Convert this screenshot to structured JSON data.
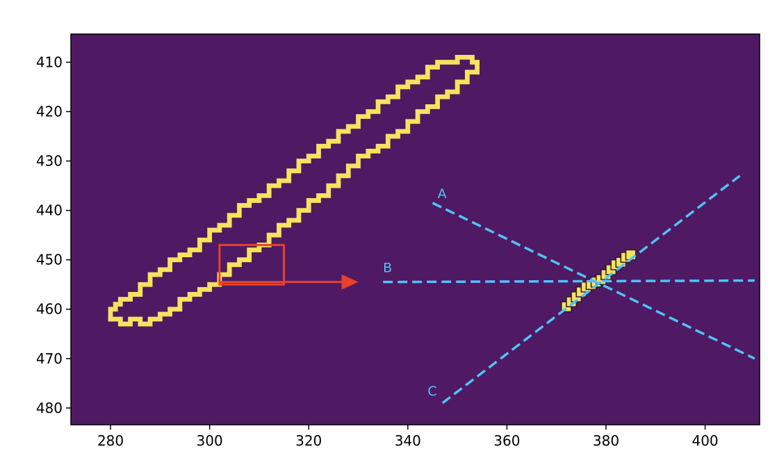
{
  "chart_data": {
    "type": "image-annotation",
    "x_ticks": [
      280,
      300,
      320,
      340,
      360,
      380,
      400
    ],
    "y_ticks": [
      410,
      420,
      430,
      440,
      450,
      460,
      470,
      480
    ],
    "xlim": [
      272,
      411
    ],
    "ylim": [
      483.4,
      404.3
    ],
    "y_inverted": true,
    "colors": {
      "background": "#4f1a63",
      "contour": "#f7e25f",
      "box": "#e8402c",
      "dashed_lines": "#4fc3f7",
      "zoom_pixel_outline": "#2a1a2e"
    },
    "contour_outer": [
      [
        280,
        462
      ],
      [
        280,
        460
      ],
      [
        281,
        459
      ],
      [
        282,
        458
      ],
      [
        284,
        457
      ],
      [
        286,
        455
      ],
      [
        288,
        453
      ],
      [
        290,
        452
      ],
      [
        292,
        450
      ],
      [
        294,
        449
      ],
      [
        296,
        448
      ],
      [
        298,
        446
      ],
      [
        300,
        444
      ],
      [
        302,
        443
      ],
      [
        304,
        441
      ],
      [
        306,
        439
      ],
      [
        308,
        438
      ],
      [
        310,
        437
      ],
      [
        312,
        435
      ],
      [
        314,
        434
      ],
      [
        316,
        432
      ],
      [
        318,
        430
      ],
      [
        320,
        429
      ],
      [
        322,
        427
      ],
      [
        324,
        426
      ],
      [
        326,
        424
      ],
      [
        328,
        423
      ],
      [
        330,
        421
      ],
      [
        332,
        420
      ],
      [
        334,
        418
      ],
      [
        336,
        417
      ],
      [
        338,
        415
      ],
      [
        340,
        414
      ],
      [
        342,
        413
      ],
      [
        344,
        411
      ],
      [
        346,
        410
      ],
      [
        349,
        410
      ],
      [
        350,
        409
      ],
      [
        352,
        409
      ],
      [
        353,
        410
      ],
      [
        354,
        412
      ]
    ],
    "contour_inner": [
      [
        354,
        412
      ],
      [
        352,
        414
      ],
      [
        350,
        416
      ],
      [
        348,
        417
      ],
      [
        346,
        419
      ],
      [
        344,
        420
      ],
      [
        342,
        422
      ],
      [
        340,
        424
      ],
      [
        338,
        425
      ],
      [
        336,
        427
      ],
      [
        334,
        428
      ],
      [
        332,
        429
      ],
      [
        330,
        431
      ],
      [
        328,
        433
      ],
      [
        326,
        435
      ],
      [
        324,
        437
      ],
      [
        322,
        438
      ],
      [
        320,
        440
      ],
      [
        318,
        442
      ],
      [
        316,
        443
      ],
      [
        314,
        445
      ],
      [
        312,
        447
      ],
      [
        310,
        448
      ],
      [
        308,
        450
      ],
      [
        306,
        451
      ],
      [
        304,
        453
      ],
      [
        302,
        455
      ],
      [
        300,
        456
      ],
      [
        298,
        457
      ],
      [
        296,
        458
      ],
      [
        294,
        460
      ],
      [
        292,
        461
      ],
      [
        290,
        462
      ],
      [
        288,
        463
      ],
      [
        286,
        462
      ],
      [
        284,
        463
      ],
      [
        282,
        462
      ],
      [
        280,
        462
      ]
    ],
    "box": {
      "x0": 302,
      "y0": 447,
      "x1": 315,
      "y1": 455
    },
    "arrow": {
      "from": [
        302,
        454.5
      ],
      "to": [
        330,
        454.5
      ]
    },
    "zoom_pixels": [
      [
        372,
        459.5
      ],
      [
        373,
        458.5
      ],
      [
        374,
        457.5
      ],
      [
        375,
        456.5
      ],
      [
        376,
        455.5
      ],
      [
        377,
        455
      ],
      [
        378,
        454.5
      ],
      [
        379,
        454
      ],
      [
        380,
        453
      ],
      [
        381,
        452
      ],
      [
        382,
        451
      ],
      [
        383,
        450.5
      ],
      [
        384,
        449.5
      ],
      [
        385,
        449
      ]
    ],
    "lines": [
      {
        "label": "A",
        "from": [
          345,
          438.5
        ],
        "to": [
          410,
          470
        ],
        "label_at": [
          346,
          437.5
        ]
      },
      {
        "label": "B",
        "from": [
          335,
          454.5
        ],
        "to": [
          410,
          454.2
        ],
        "label_at": [
          335,
          452.5
        ]
      },
      {
        "label": "C",
        "from": [
          347,
          479
        ],
        "to": [
          407,
          433
        ],
        "label_at": [
          344,
          477.5
        ]
      }
    ]
  }
}
